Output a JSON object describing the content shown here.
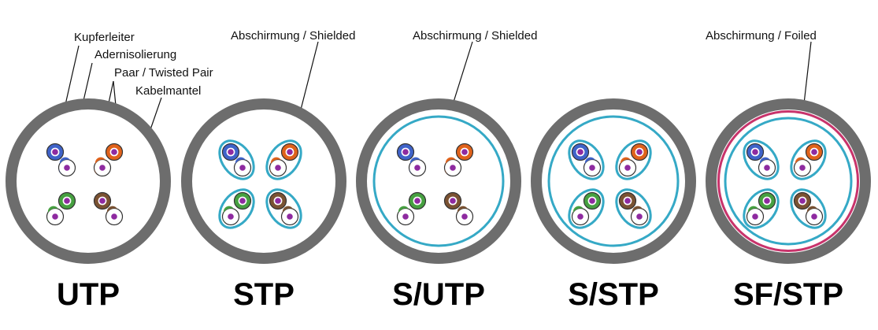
{
  "colors": {
    "jacket": "#6d6d6d",
    "shield": "#35a9c6",
    "foil": "#c8336b",
    "conductor": "#8e2aa0",
    "blue": "#3f63c9",
    "orange": "#e0621b",
    "green": "#46a040",
    "brown": "#7a5232"
  },
  "labels": {
    "kupferleiter": "Kupferleiter",
    "adernisolierung": "Adernisolierung",
    "paar": "Paar / Twisted Pair",
    "kabelmantel": "Kabelmantel",
    "shielded": "Abschirmung / Shielded",
    "foiled": "Abschirmung / Foiled"
  },
  "cables": [
    {
      "name": "UTP"
    },
    {
      "name": "STP"
    },
    {
      "name": "S/UTP"
    },
    {
      "name": "S/STP"
    },
    {
      "name": "SF/STP"
    }
  ]
}
